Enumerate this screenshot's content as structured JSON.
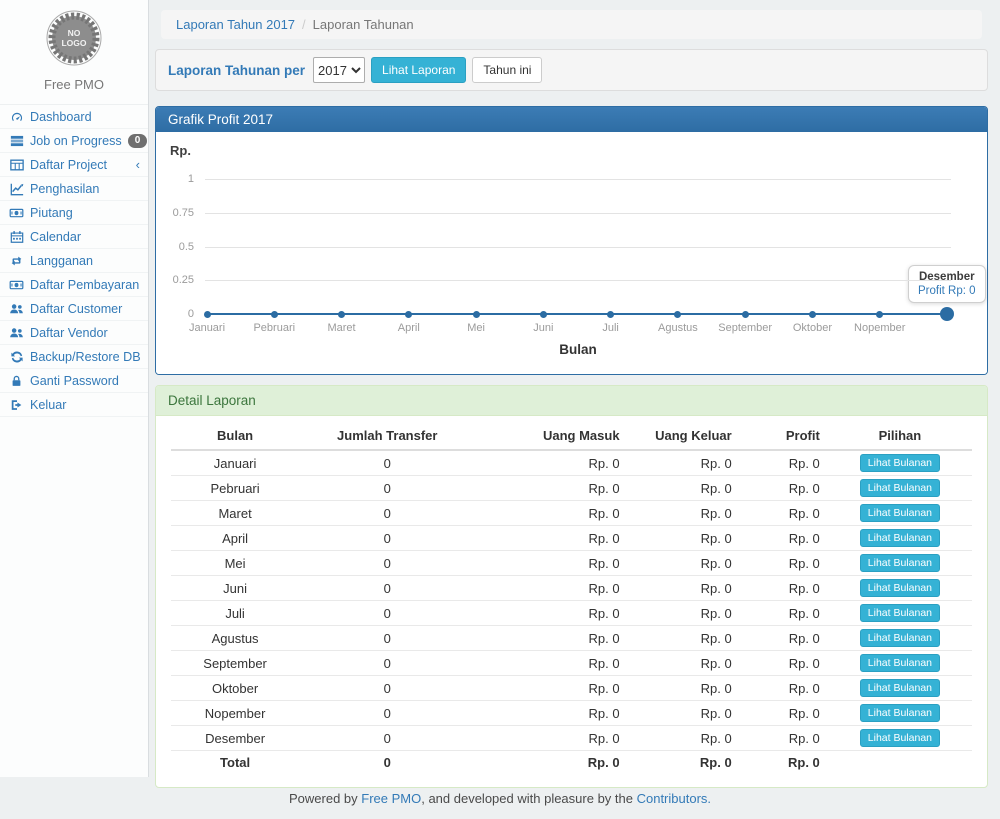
{
  "sidebar": {
    "logo": {
      "line1": "NO",
      "line2": "LOGO"
    },
    "brand": "Free PMO",
    "items": [
      {
        "label": "Dashboard",
        "icon": "dashboard-icon"
      },
      {
        "label": "Job on Progress",
        "icon": "tasks-icon",
        "badge": "0"
      },
      {
        "label": "Daftar Project",
        "icon": "table-icon",
        "chevron": true
      },
      {
        "label": "Penghasilan",
        "icon": "chart-line-icon"
      },
      {
        "label": "Piutang",
        "icon": "money-icon"
      },
      {
        "label": "Calendar",
        "icon": "calendar-icon"
      },
      {
        "label": "Langganan",
        "icon": "retweet-icon"
      },
      {
        "label": "Daftar Pembayaran",
        "icon": "money-icon"
      },
      {
        "label": "Daftar Customer",
        "icon": "users-icon"
      },
      {
        "label": "Daftar Vendor",
        "icon": "users-icon"
      },
      {
        "label": "Backup/Restore DB",
        "icon": "refresh-icon"
      },
      {
        "label": "Ganti Password",
        "icon": "lock-icon"
      },
      {
        "label": "Keluar",
        "icon": "sign-out-icon"
      }
    ]
  },
  "breadcrumb": {
    "link": "Laporan Tahun 2017",
    "separator": "/",
    "current": "Laporan Tahunan"
  },
  "filter": {
    "label": "Laporan Tahunan per",
    "year": "2017",
    "submit_label": "Lihat Laporan",
    "current_year_label": "Tahun ini"
  },
  "chart_panel": {
    "title": "Grafik Profit 2017"
  },
  "chart_data": {
    "type": "line",
    "title": "Grafik Profit 2017",
    "ylabel": "Rp.",
    "xlabel": "Bulan",
    "categories": [
      "Januari",
      "Pebruari",
      "Maret",
      "April",
      "Mei",
      "Juni",
      "Juli",
      "Agustus",
      "September",
      "Oktober",
      "Nopember",
      "Desember"
    ],
    "values": [
      0,
      0,
      0,
      0,
      0,
      0,
      0,
      0,
      0,
      0,
      0,
      0
    ],
    "yticks": [
      1,
      0.75,
      0.5,
      0.25,
      0
    ],
    "ylim": [
      0,
      1
    ],
    "x_tick_labels": [
      "Januari",
      "Pebruari",
      "Maret",
      "April",
      "Mei",
      "Juni",
      "Juli",
      "Agustus",
      "September",
      "Oktober",
      "Nopember"
    ],
    "grid": "horizontal",
    "legend": "none",
    "line_color": "#2b6ca3",
    "highlight_index": 11,
    "tooltip": {
      "title": "Desember",
      "value": "Profit Rp: 0"
    }
  },
  "detail": {
    "title": "Detail Laporan",
    "columns": [
      "Bulan",
      "Jumlah Transfer",
      "Uang Masuk",
      "Uang Keluar",
      "Profit",
      "Pilihan"
    ],
    "action_label": "Lihat Bulanan",
    "rows": [
      [
        "Januari",
        "0",
        "Rp. 0",
        "Rp. 0",
        "Rp. 0"
      ],
      [
        "Pebruari",
        "0",
        "Rp. 0",
        "Rp. 0",
        "Rp. 0"
      ],
      [
        "Maret",
        "0",
        "Rp. 0",
        "Rp. 0",
        "Rp. 0"
      ],
      [
        "April",
        "0",
        "Rp. 0",
        "Rp. 0",
        "Rp. 0"
      ],
      [
        "Mei",
        "0",
        "Rp. 0",
        "Rp. 0",
        "Rp. 0"
      ],
      [
        "Juni",
        "0",
        "Rp. 0",
        "Rp. 0",
        "Rp. 0"
      ],
      [
        "Juli",
        "0",
        "Rp. 0",
        "Rp. 0",
        "Rp. 0"
      ],
      [
        "Agustus",
        "0",
        "Rp. 0",
        "Rp. 0",
        "Rp. 0"
      ],
      [
        "September",
        "0",
        "Rp. 0",
        "Rp. 0",
        "Rp. 0"
      ],
      [
        "Oktober",
        "0",
        "Rp. 0",
        "Rp. 0",
        "Rp. 0"
      ],
      [
        "Nopember",
        "0",
        "Rp. 0",
        "Rp. 0",
        "Rp. 0"
      ],
      [
        "Desember",
        "0",
        "Rp. 0",
        "Rp. 0",
        "Rp. 0"
      ]
    ],
    "total_row": [
      "Total",
      "0",
      "Rp. 0",
      "Rp. 0",
      "Rp. 0"
    ]
  },
  "footer": {
    "prefix": "Powered by ",
    "link1": "Free PMO",
    "middle": ", and developed with pleasure by the ",
    "link2": "Contributors."
  },
  "colors": {
    "accent": "#337ab7",
    "panel_primary": "#2e6da4",
    "success_heading_bg": "#dff0d8",
    "success_heading_text": "#3c763d",
    "info_button": "#35b2d5",
    "line": "#2b6ca3"
  }
}
